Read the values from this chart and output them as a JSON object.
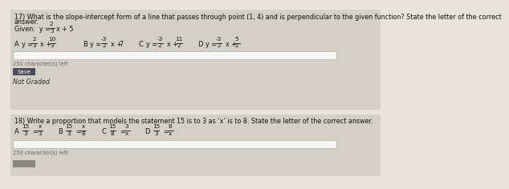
{
  "bg_color": "#e8e4dc",
  "box1_color": "#d4d0c8",
  "box2_color": "#d4d0c8",
  "separator_color": "#c0bdb5",
  "white": "#f8f8f8",
  "dark_text": "#111111",
  "gray_text": "#666666",
  "save_btn_color": "#4a4a5a",
  "save_btn_text_color": "#ffffff",
  "not_graded_color": "#333333",
  "q17_line1": "17) What is the slope-intercept form of a line that passes through point (1, 4) and is perpendicular to the given function? State the letter of the correct",
  "q17_line2": "answer.",
  "q17_given_pre": "Given:  y = ",
  "q17_given_post": "x + 5",
  "q18_line1": "18) Write a proportion that models the statement 15 is to 3 as ‘x’ is to 8. State the letter of the correct answer.",
  "chars_left": "250 character(s) left",
  "save_label": "Save",
  "not_graded": "Not Graded"
}
